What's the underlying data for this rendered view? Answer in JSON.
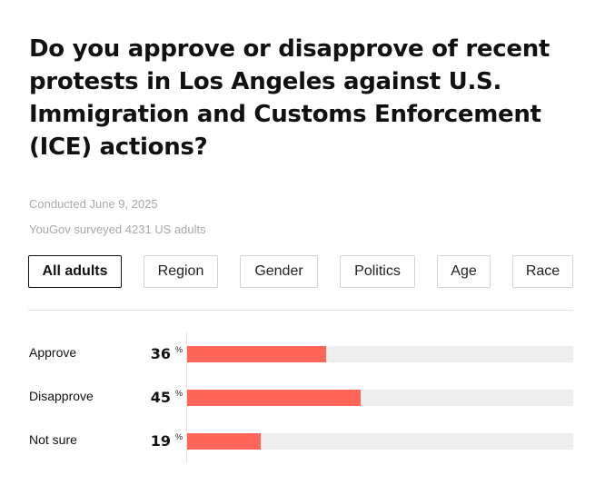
{
  "title": "Do you approve or disapprove of recent protests in Los Angeles against U.S. Immigration and Customs Enforcement (ICE) actions?",
  "meta": {
    "conducted": "Conducted June 9, 2025",
    "surveyed": "YouGov surveyed 4231 US adults"
  },
  "tabs": [
    "All adults",
    "Region",
    "Gender",
    "Politics",
    "Age",
    "Race"
  ],
  "active_tab": "All adults",
  "colors": {
    "bar": "#ff6657",
    "track": "#eeeeee"
  },
  "chart_data": {
    "type": "bar",
    "orientation": "horizontal",
    "categories": [
      "Approve",
      "Disapprove",
      "Not sure"
    ],
    "values": [
      36,
      45,
      19
    ],
    "unit": "%",
    "xlim": [
      0,
      100
    ],
    "grid": false
  }
}
